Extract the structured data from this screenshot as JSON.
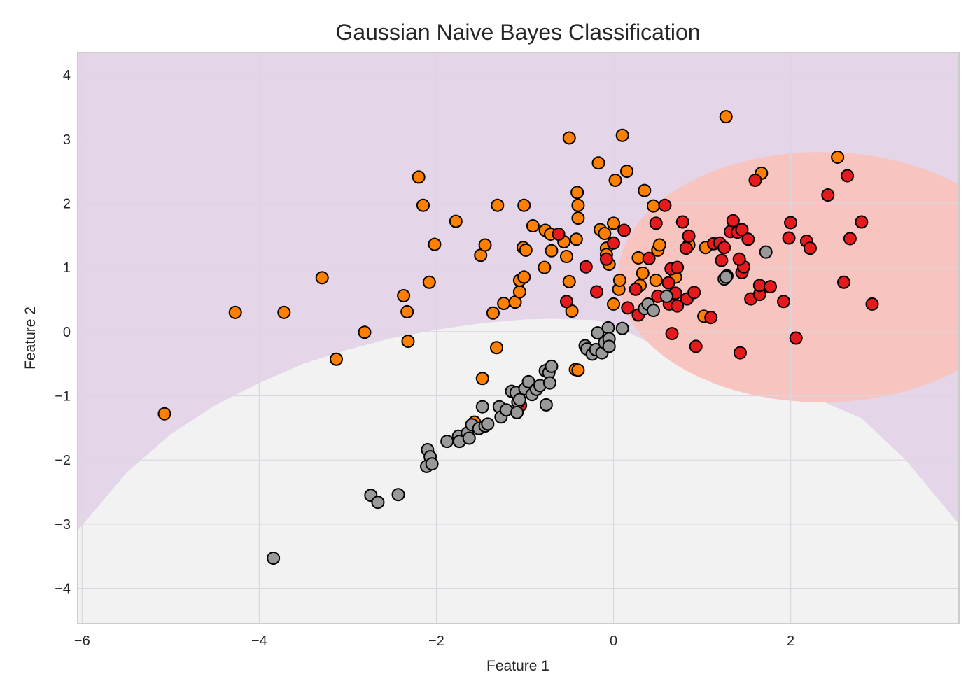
{
  "chart_data": {
    "type": "scatter",
    "title": "Gaussian Naive Bayes Classification",
    "xlabel": "Feature 1",
    "ylabel": "Feature 2",
    "xlim": [
      -6.05,
      3.9
    ],
    "ylim": [
      -4.55,
      4.35
    ],
    "xticks": [
      -6,
      -4,
      -2,
      0,
      2
    ],
    "xtick_labels": [
      "−6",
      "−4",
      "−2",
      "0",
      "2"
    ],
    "yticks": [
      -4,
      -3,
      -2,
      -1,
      0,
      1,
      2,
      3,
      4
    ],
    "ytick_labels": [
      "−4",
      "−3",
      "−2",
      "−1",
      "0",
      "1",
      "2",
      "3",
      "4"
    ],
    "grid": true,
    "legend": "none",
    "colors": {
      "background_class": "#e4d5e8",
      "gray_class_region": "#f2f2f2",
      "red_class_region": "#f8c4c0",
      "orange_points": "#ff7f00",
      "red_points": "#e41a1c",
      "gray_points": "#999999",
      "marker_edge": "#000000",
      "grid": "#dcd6e0",
      "frame": "#cccccc"
    },
    "decision_regions": {
      "gray_region_boundary": [
        [
          -6.05,
          -3.1
        ],
        [
          -5.5,
          -2.2
        ],
        [
          -5,
          -1.6
        ],
        [
          -4.5,
          -1.15
        ],
        [
          -4,
          -0.8
        ],
        [
          -3.5,
          -0.5
        ],
        [
          -3,
          -0.28
        ],
        [
          -2.5,
          -0.1
        ],
        [
          -2,
          0.03
        ],
        [
          -1.5,
          0.13
        ],
        [
          -1,
          0.19
        ],
        [
          -0.7,
          0.2
        ],
        [
          -0.2,
          0.18
        ],
        [
          0,
          0.1
        ],
        [
          0.3,
          -0.1
        ],
        [
          0.8,
          -0.45
        ],
        [
          1.3,
          -0.75
        ],
        [
          1.8,
          -0.95
        ],
        [
          2.3,
          -1.05
        ],
        [
          2.8,
          -1.35
        ],
        [
          3.3,
          -2
        ],
        [
          3.9,
          -3.0
        ]
      ],
      "red_region": {
        "cx": 2.35,
        "cy": 0.85,
        "rx": 2.3,
        "ry": 1.95
      }
    },
    "series": [
      {
        "color": "#ff7f00",
        "points": [
          [
            -5.07,
            -1.28
          ],
          [
            -4.27,
            0.3
          ],
          [
            -3.72,
            0.3
          ],
          [
            -3.29,
            0.84
          ],
          [
            -3.13,
            -0.43
          ],
          [
            -2.81,
            -0.01
          ],
          [
            -2.37,
            0.56
          ],
          [
            -2.33,
            0.31
          ],
          [
            -2.32,
            -0.15
          ],
          [
            -2.2,
            2.41
          ],
          [
            -2.15,
            1.97
          ],
          [
            -2.08,
            0.77
          ],
          [
            -2.02,
            1.36
          ],
          [
            -1.78,
            1.72
          ],
          [
            -1.5,
            1.19
          ],
          [
            -1.45,
            1.35
          ],
          [
            -1.36,
            0.29
          ],
          [
            -1.31,
            1.97
          ],
          [
            -1.32,
            -0.25
          ],
          [
            -1.48,
            -0.73
          ],
          [
            -1.57,
            -1.41
          ],
          [
            -1.24,
            0.44
          ],
          [
            -1.11,
            0.46
          ],
          [
            -1.06,
            0.62
          ],
          [
            -1.06,
            0.8
          ],
          [
            -1.01,
            0.85
          ],
          [
            -1.02,
            1.31
          ],
          [
            -0.99,
            1.27
          ],
          [
            -1.01,
            1.97
          ],
          [
            -0.91,
            1.65
          ],
          [
            -0.78,
            1.0
          ],
          [
            -0.77,
            1.58
          ],
          [
            -0.71,
            1.52
          ],
          [
            -0.7,
            1.26
          ],
          [
            -0.56,
            1.4
          ],
          [
            -0.53,
            1.17
          ],
          [
            -0.5,
            3.02
          ],
          [
            -0.5,
            0.78
          ],
          [
            -0.47,
            0.32
          ],
          [
            -0.42,
            1.44
          ],
          [
            -0.41,
            2.17
          ],
          [
            -0.4,
            1.97
          ],
          [
            -0.4,
            1.77
          ],
          [
            -0.43,
            -0.59
          ],
          [
            -0.4,
            -0.6
          ],
          [
            -0.17,
            2.63
          ],
          [
            -0.15,
            1.59
          ],
          [
            -0.08,
            1.3
          ],
          [
            -0.08,
            1.2
          ],
          [
            -0.1,
            1.53
          ],
          [
            -0.05,
            1.05
          ],
          [
            0.0,
            1.69
          ],
          [
            0.02,
            2.36
          ],
          [
            0.1,
            3.06
          ],
          [
            0.15,
            2.5
          ],
          [
            0.35,
            2.2
          ],
          [
            0.45,
            1.96
          ],
          [
            0.06,
            0.66
          ],
          [
            0.07,
            0.8
          ],
          [
            0.0,
            0.43
          ],
          [
            0.28,
            1.15
          ],
          [
            0.3,
            0.72
          ],
          [
            0.33,
            0.91
          ],
          [
            0.5,
            1.27
          ],
          [
            0.52,
            1.35
          ],
          [
            0.48,
            0.8
          ],
          [
            0.7,
            0.85
          ],
          [
            0.85,
            1.35
          ],
          [
            1.04,
            1.31
          ],
          [
            1.02,
            0.24
          ],
          [
            1.27,
            3.35
          ],
          [
            1.67,
            2.47
          ],
          [
            2.53,
            2.72
          ]
        ]
      },
      {
        "color": "#e41a1c",
        "points": [
          [
            -0.62,
            1.52
          ],
          [
            -0.53,
            0.47
          ],
          [
            -0.31,
            1.01
          ],
          [
            -0.19,
            0.62
          ],
          [
            -0.08,
            1.13
          ],
          [
            0.0,
            1.38
          ],
          [
            0.12,
            1.58
          ],
          [
            0.16,
            0.37
          ],
          [
            0.25,
            0.66
          ],
          [
            0.28,
            0.26
          ],
          [
            0.4,
            1.14
          ],
          [
            0.48,
            1.69
          ],
          [
            0.5,
            0.55
          ],
          [
            0.58,
            1.97
          ],
          [
            0.62,
            0.76
          ],
          [
            0.63,
            0.43
          ],
          [
            0.65,
            0.98
          ],
          [
            0.66,
            -0.03
          ],
          [
            0.7,
            0.6
          ],
          [
            0.72,
            1.0
          ],
          [
            0.72,
            0.4
          ],
          [
            0.78,
            1.71
          ],
          [
            0.82,
            1.3
          ],
          [
            0.83,
            0.51
          ],
          [
            0.85,
            1.49
          ],
          [
            0.91,
            0.61
          ],
          [
            0.93,
            -0.23
          ],
          [
            1.1,
            0.22
          ],
          [
            1.13,
            1.37
          ],
          [
            1.2,
            1.38
          ],
          [
            1.22,
            1.11
          ],
          [
            1.25,
            1.31
          ],
          [
            1.28,
            0.87
          ],
          [
            1.32,
            1.56
          ],
          [
            1.35,
            1.73
          ],
          [
            1.4,
            1.55
          ],
          [
            1.45,
            1.59
          ],
          [
            1.45,
            0.92
          ],
          [
            1.47,
            1.01
          ],
          [
            1.42,
            1.13
          ],
          [
            1.43,
            -0.33
          ],
          [
            1.52,
            1.44
          ],
          [
            1.55,
            0.51
          ],
          [
            1.6,
            2.36
          ],
          [
            1.65,
            0.58
          ],
          [
            1.65,
            0.72
          ],
          [
            1.77,
            0.7
          ],
          [
            1.92,
            0.47
          ],
          [
            1.98,
            1.46
          ],
          [
            2.0,
            1.7
          ],
          [
            2.06,
            -0.1
          ],
          [
            2.18,
            1.41
          ],
          [
            2.22,
            1.3
          ],
          [
            2.42,
            2.13
          ],
          [
            2.6,
            0.77
          ],
          [
            2.64,
            2.43
          ],
          [
            2.67,
            1.45
          ],
          [
            2.8,
            1.71
          ],
          [
            2.92,
            0.43
          ],
          [
            -1.05,
            -1.15
          ]
        ]
      },
      {
        "color": "#999999",
        "points": [
          [
            -3.84,
            -3.53
          ],
          [
            -2.74,
            -2.55
          ],
          [
            -2.66,
            -2.66
          ],
          [
            -2.43,
            -2.54
          ],
          [
            -2.11,
            -2.1
          ],
          [
            -2.1,
            -1.84
          ],
          [
            -2.07,
            -1.95
          ],
          [
            -2.05,
            -2.06
          ],
          [
            -1.88,
            -1.71
          ],
          [
            -1.75,
            -1.63
          ],
          [
            -1.74,
            -1.71
          ],
          [
            -1.65,
            -1.58
          ],
          [
            -1.63,
            -1.66
          ],
          [
            -1.6,
            -1.45
          ],
          [
            -1.52,
            -1.51
          ],
          [
            -1.45,
            -1.47
          ],
          [
            -1.42,
            -1.44
          ],
          [
            -1.48,
            -1.17
          ],
          [
            -1.29,
            -1.17
          ],
          [
            -1.27,
            -1.33
          ],
          [
            -1.21,
            -1.22
          ],
          [
            -1.15,
            -0.93
          ],
          [
            -1.1,
            -0.95
          ],
          [
            -1.08,
            -1.1
          ],
          [
            -1.06,
            -1.06
          ],
          [
            -1.09,
            -1.26
          ],
          [
            -1.0,
            -0.89
          ],
          [
            -0.96,
            -0.78
          ],
          [
            -0.92,
            -0.98
          ],
          [
            -0.87,
            -0.9
          ],
          [
            -0.83,
            -0.84
          ],
          [
            -0.77,
            -0.61
          ],
          [
            -0.76,
            -1.14
          ],
          [
            -0.73,
            -0.64
          ],
          [
            -0.72,
            -0.8
          ],
          [
            -0.7,
            -0.54
          ],
          [
            -0.32,
            -0.22
          ],
          [
            -0.3,
            -0.27
          ],
          [
            -0.24,
            -0.35
          ],
          [
            -0.2,
            -0.28
          ],
          [
            -0.18,
            -0.02
          ],
          [
            -0.13,
            -0.33
          ],
          [
            -0.1,
            -0.17
          ],
          [
            -0.06,
            0.06
          ],
          [
            -0.05,
            -0.11
          ],
          [
            -0.05,
            -0.23
          ],
          [
            0.1,
            0.05
          ],
          [
            0.35,
            0.36
          ],
          [
            0.39,
            0.43
          ],
          [
            0.45,
            0.33
          ],
          [
            0.6,
            0.55
          ],
          [
            1.25,
            0.82
          ],
          [
            1.27,
            0.85
          ],
          [
            1.72,
            1.24
          ]
        ]
      }
    ]
  }
}
